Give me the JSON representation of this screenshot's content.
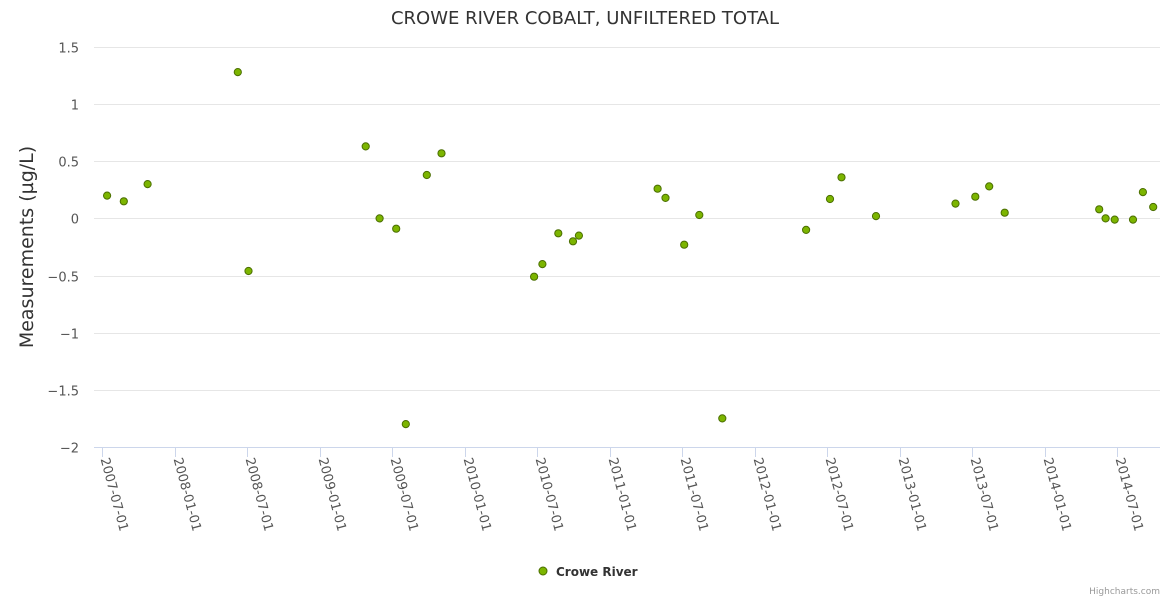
{
  "chart_data": {
    "type": "scatter",
    "title": "CROWE RIVER COBALT, UNFILTERED TOTAL",
    "xlabel": "",
    "ylabel": "Measurements (µg/L)",
    "ylim": [
      -2,
      1.5
    ],
    "yticks": [
      "1.5",
      "1",
      "0.5",
      "0",
      "−0.5",
      "−1",
      "−1.5",
      "−2"
    ],
    "ytick_values": [
      1.5,
      1,
      0.5,
      0,
      -0.5,
      -1,
      -1.5,
      -2
    ],
    "xlim": [
      "2007-06-12",
      "2014-10-17"
    ],
    "xticks": [
      "2007-07-01",
      "2008-01-01",
      "2008-07-01",
      "2009-01-01",
      "2009-07-01",
      "2010-01-01",
      "2010-07-01",
      "2011-01-01",
      "2011-07-01",
      "2012-01-01",
      "2012-07-01",
      "2013-01-01",
      "2013-07-01",
      "2014-01-01",
      "2014-07-01"
    ],
    "legend_position": "bottom-center",
    "credit": "Highcharts.com",
    "series": [
      {
        "name": "Crowe River",
        "color": "#7cb500",
        "border": "#4a6e00",
        "points": [
          {
            "x": "2007-07-15",
            "y": 0.2
          },
          {
            "x": "2007-08-26",
            "y": 0.15
          },
          {
            "x": "2007-10-25",
            "y": 0.3
          },
          {
            "x": "2008-06-08",
            "y": 1.28
          },
          {
            "x": "2008-07-05",
            "y": -0.46
          },
          {
            "x": "2009-04-26",
            "y": 0.63
          },
          {
            "x": "2009-05-31",
            "y": 0.0
          },
          {
            "x": "2009-07-12",
            "y": -0.09
          },
          {
            "x": "2009-08-05",
            "y": -1.8
          },
          {
            "x": "2009-09-27",
            "y": 0.38
          },
          {
            "x": "2009-11-03",
            "y": 0.57
          },
          {
            "x": "2010-06-24",
            "y": -0.51
          },
          {
            "x": "2010-07-15",
            "y": -0.4
          },
          {
            "x": "2010-08-24",
            "y": -0.13
          },
          {
            "x": "2010-09-30",
            "y": -0.2
          },
          {
            "x": "2010-10-15",
            "y": -0.15
          },
          {
            "x": "2011-05-01",
            "y": 0.26
          },
          {
            "x": "2011-05-21",
            "y": 0.18
          },
          {
            "x": "2011-07-07",
            "y": -0.23
          },
          {
            "x": "2011-08-14",
            "y": 0.03
          },
          {
            "x": "2011-10-11",
            "y": -1.75
          },
          {
            "x": "2012-05-09",
            "y": -0.1
          },
          {
            "x": "2012-07-08",
            "y": 0.17
          },
          {
            "x": "2012-08-06",
            "y": 0.36
          },
          {
            "x": "2012-11-01",
            "y": 0.02
          },
          {
            "x": "2013-05-20",
            "y": 0.13
          },
          {
            "x": "2013-07-09",
            "y": 0.19
          },
          {
            "x": "2013-08-13",
            "y": 0.28
          },
          {
            "x": "2013-09-21",
            "y": 0.05
          },
          {
            "x": "2014-05-17",
            "y": 0.08
          },
          {
            "x": "2014-06-02",
            "y": 0.0
          },
          {
            "x": "2014-06-25",
            "y": -0.01
          },
          {
            "x": "2014-08-10",
            "y": -0.01
          },
          {
            "x": "2014-09-04",
            "y": 0.23
          },
          {
            "x": "2014-09-30",
            "y": 0.1
          }
        ]
      }
    ]
  }
}
